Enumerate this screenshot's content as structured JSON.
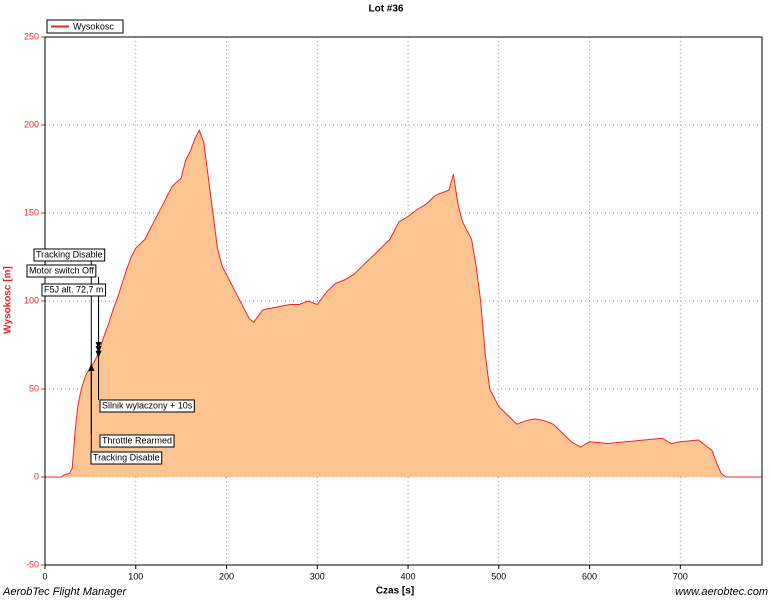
{
  "chart_data": {
    "type": "area",
    "title": "Lot #36",
    "xlabel": "Czas [s]",
    "ylabel": "Wysokosc [m]",
    "xlim": [
      0,
      790
    ],
    "ylim": [
      -50,
      250
    ],
    "xticks": [
      0,
      100,
      200,
      300,
      400,
      500,
      600,
      700
    ],
    "yticks": [
      -50,
      0,
      50,
      100,
      150,
      200,
      250
    ],
    "grid": true,
    "legend": "top-left",
    "series": [
      {
        "name": "Wysokosc",
        "color": "#e8262a",
        "fill": "#fcc490",
        "x": [
          0,
          18,
          20,
          27,
          30,
          33,
          36,
          40,
          45,
          50,
          55,
          60,
          65,
          70,
          75,
          80,
          85,
          90,
          95,
          100,
          110,
          120,
          130,
          140,
          150,
          155,
          160,
          165,
          170,
          175,
          180,
          185,
          190,
          195,
          200,
          210,
          220,
          225,
          230,
          240,
          250,
          260,
          270,
          280,
          290,
          300,
          310,
          320,
          330,
          340,
          350,
          360,
          370,
          380,
          390,
          400,
          410,
          420,
          430,
          440,
          445,
          450,
          455,
          460,
          470,
          475,
          480,
          485,
          490,
          495,
          500,
          510,
          520,
          530,
          540,
          550,
          560,
          570,
          580,
          590,
          600,
          620,
          640,
          660,
          680,
          690,
          700,
          720,
          735,
          740,
          745,
          750,
          790
        ],
        "values": [
          0,
          0,
          1,
          2,
          5,
          25,
          40,
          50,
          58,
          62,
          66,
          72,
          80,
          87,
          95,
          102,
          110,
          118,
          125,
          130,
          135,
          145,
          155,
          165,
          170,
          180,
          185,
          192,
          197,
          190,
          170,
          150,
          130,
          120,
          115,
          105,
          95,
          90,
          88,
          95,
          96,
          97,
          98,
          98,
          100,
          98,
          105,
          110,
          112,
          115,
          120,
          125,
          130,
          135,
          145,
          148,
          152,
          155,
          160,
          162,
          163,
          172,
          155,
          145,
          135,
          120,
          100,
          70,
          50,
          45,
          40,
          35,
          30,
          32,
          33,
          32,
          30,
          25,
          20,
          17,
          20,
          19,
          20,
          21,
          22,
          19,
          20,
          21,
          15,
          8,
          2,
          0,
          0
        ]
      }
    ],
    "annotations": [
      {
        "text": "Tracking Disable",
        "x": 51,
        "y": 62
      },
      {
        "text": "Motor switch Off",
        "x": 59,
        "y": 75
      },
      {
        "text": "F5J alt. 72,7 m",
        "x": 59,
        "y": 72.7
      },
      {
        "text": "Silnik wylaczony + 10s",
        "x": 59,
        "y": 70
      },
      {
        "text": "Throttle Rearmed",
        "x": 51,
        "y": 62
      },
      {
        "text": "Tracking Disable",
        "x": 51,
        "y": 62
      }
    ]
  },
  "footer": {
    "left": "AerobTec Flight Manager",
    "right": "www.aerobtec.com"
  }
}
